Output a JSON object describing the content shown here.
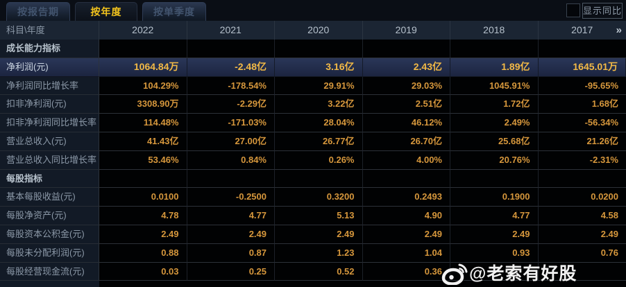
{
  "tabs": [
    {
      "label": "按报告期",
      "active": false
    },
    {
      "label": "按年度",
      "active": true
    },
    {
      "label": "按单季度",
      "active": false
    }
  ],
  "controls": {
    "show_yoy_label": "显示同比",
    "checkbox_checked": false
  },
  "table": {
    "corner_label": "科目\\年度",
    "years": [
      "2022",
      "2021",
      "2020",
      "2019",
      "2018",
      "2017"
    ],
    "more_icon": "»",
    "rows": [
      {
        "type": "section",
        "label": "成长能力指标",
        "values": [
          "",
          "",
          "",
          "",
          "",
          ""
        ]
      },
      {
        "type": "highlight",
        "label": "净利润(元)",
        "values": [
          "1064.84万",
          "-2.48亿",
          "3.16亿",
          "2.43亿",
          "1.89亿",
          "1645.01万"
        ]
      },
      {
        "type": "data",
        "label": "净利润同比增长率",
        "values": [
          "104.29%",
          "-178.54%",
          "29.91%",
          "29.03%",
          "1045.91%",
          "-95.65%"
        ]
      },
      {
        "type": "data",
        "label": "扣非净利润(元)",
        "values": [
          "3308.90万",
          "-2.29亿",
          "3.22亿",
          "2.51亿",
          "1.72亿",
          "1.68亿"
        ]
      },
      {
        "type": "data",
        "label": "扣非净利润同比增长率",
        "values": [
          "114.48%",
          "-171.03%",
          "28.04%",
          "46.12%",
          "2.49%",
          "-56.34%"
        ]
      },
      {
        "type": "data",
        "label": "营业总收入(元)",
        "values": [
          "41.43亿",
          "27.00亿",
          "26.77亿",
          "26.70亿",
          "25.68亿",
          "21.26亿"
        ]
      },
      {
        "type": "data",
        "label": "营业总收入同比增长率",
        "values": [
          "53.46%",
          "0.84%",
          "0.26%",
          "4.00%",
          "20.76%",
          "-2.31%"
        ]
      },
      {
        "type": "section",
        "label": "每股指标",
        "values": [
          "",
          "",
          "",
          "",
          "",
          ""
        ]
      },
      {
        "type": "data",
        "label": "基本每股收益(元)",
        "values": [
          "0.0100",
          "-0.2500",
          "0.3200",
          "0.2493",
          "0.1900",
          "0.0200"
        ]
      },
      {
        "type": "data",
        "label": "每股净资产(元)",
        "values": [
          "4.78",
          "4.77",
          "5.13",
          "4.90",
          "4.77",
          "4.58"
        ]
      },
      {
        "type": "data",
        "label": "每股资本公积金(元)",
        "values": [
          "2.49",
          "2.49",
          "2.49",
          "2.49",
          "2.49",
          "2.49"
        ]
      },
      {
        "type": "data",
        "label": "每股未分配利润(元)",
        "values": [
          "0.88",
          "0.87",
          "1.23",
          "1.04",
          "0.93",
          "0.76"
        ]
      },
      {
        "type": "data",
        "label": "每股经营现金流(元)",
        "values": [
          "0.03",
          "0.25",
          "0.52",
          "0.36",
          "",
          ""
        ]
      }
    ]
  },
  "watermark": {
    "text": "@老索有好股"
  },
  "colors": {
    "accent_gold": "#f2c31d",
    "value_orange": "#d6973c",
    "highlight_value": "#f2b946",
    "highlight_row_bg": "#212c49",
    "header_bg": "#1b2533",
    "label_col_bg": "#121a26",
    "cell_bg": "#010203"
  }
}
